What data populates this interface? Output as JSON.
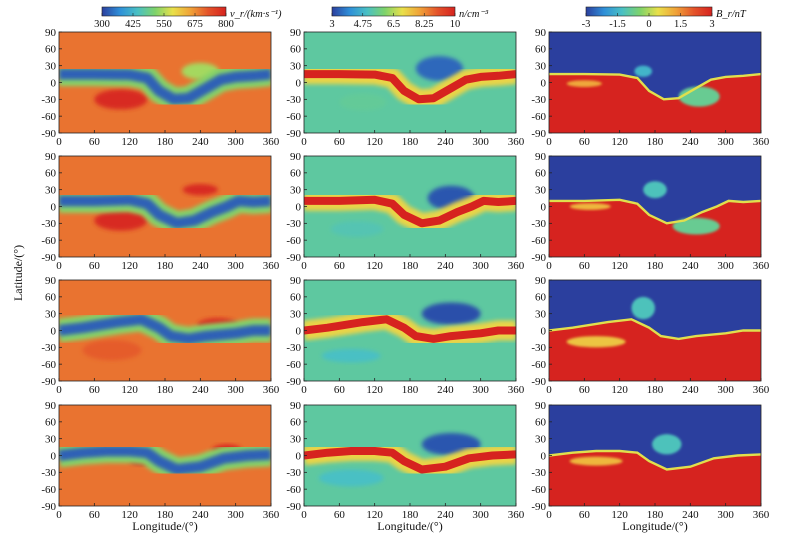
{
  "chart_data": {
    "type": "heatmap",
    "layout": "4 rows x 3 columns of synoptic maps",
    "xlabel": "Longitude/(°)",
    "ylabel": "Latitude/(°)",
    "xlim": [
      0,
      360
    ],
    "ylim": [
      -90,
      90
    ],
    "xticks": [
      0,
      60,
      120,
      180,
      240,
      300,
      360
    ],
    "yticks": [
      90,
      60,
      30,
      0,
      -30,
      -60,
      -90
    ],
    "columns": [
      {
        "quantity": "radial velocity",
        "colorbar_label": "v_r/(km·s⁻¹)",
        "colorbar_ticks": [
          300,
          425,
          550,
          675,
          800
        ],
        "colorbar_range": [
          300,
          800
        ],
        "colors": [
          "#2b3f9e",
          "#2f8fd8",
          "#49c0c4",
          "#7ed36b",
          "#e9e04a",
          "#f0a238",
          "#e4532a",
          "#d6231f"
        ]
      },
      {
        "quantity": "number density",
        "colorbar_label": "n/cm⁻³",
        "colorbar_ticks": [
          3,
          4.75,
          6.5,
          8.25,
          10
        ],
        "colorbar_range": [
          3,
          10
        ],
        "colors": [
          "#2b3f9e",
          "#2f8fd8",
          "#49c0c4",
          "#7ed36b",
          "#e9e04a",
          "#f0a238",
          "#e4532a",
          "#d6231f"
        ]
      },
      {
        "quantity": "radial magnetic field",
        "colorbar_label": "B_r/nT",
        "colorbar_ticks": [
          -3,
          -1.5,
          0,
          1.5,
          3
        ],
        "colorbar_range": [
          -3,
          3
        ],
        "colors": [
          "#2b3f9e",
          "#2f8fd8",
          "#49c0c4",
          "#7ed36b",
          "#e9e04a",
          "#f0a238",
          "#e4532a",
          "#d6231f"
        ]
      }
    ],
    "rows": [
      {
        "neutral_line": [
          [
            0,
            15
          ],
          [
            60,
            15
          ],
          [
            120,
            14
          ],
          [
            150,
            8
          ],
          [
            170,
            -15
          ],
          [
            195,
            -30
          ],
          [
            220,
            -28
          ],
          [
            250,
            -10
          ],
          [
            275,
            5
          ],
          [
            300,
            10
          ],
          [
            330,
            12
          ],
          [
            360,
            15
          ]
        ],
        "vr_blobs": [
          {
            "lon": 105,
            "lat": -30,
            "rx": 45,
            "ry": 18,
            "value": 790
          },
          {
            "lon": 240,
            "lat": 20,
            "rx": 32,
            "ry": 15,
            "value": 540
          }
        ],
        "n_blobs": [
          {
            "lon": 230,
            "lat": 25,
            "rx": 40,
            "ry": 22,
            "value": 3.5
          },
          {
            "lon": 100,
            "lat": -35,
            "rx": 40,
            "ry": 15,
            "value": 5.5
          }
        ],
        "br_blobs": [
          {
            "lon": 255,
            "lat": -25,
            "rx": 35,
            "ry": 18,
            "value": -0.8
          },
          {
            "lon": 60,
            "lat": -2,
            "rx": 30,
            "ry": 6,
            "value": 1.2
          },
          {
            "lon": 160,
            "lat": 20,
            "rx": 15,
            "ry": 10,
            "value": -1.5
          }
        ]
      },
      {
        "neutral_line": [
          [
            0,
            10
          ],
          [
            60,
            10
          ],
          [
            120,
            12
          ],
          [
            150,
            5
          ],
          [
            170,
            -15
          ],
          [
            200,
            -30
          ],
          [
            230,
            -25
          ],
          [
            260,
            -10
          ],
          [
            285,
            0
          ],
          [
            305,
            10
          ],
          [
            330,
            8
          ],
          [
            360,
            10
          ]
        ],
        "vr_blobs": [
          {
            "lon": 105,
            "lat": -25,
            "rx": 45,
            "ry": 18,
            "value": 790
          },
          {
            "lon": 240,
            "lat": 30,
            "rx": 30,
            "ry": 10,
            "value": 790
          }
        ],
        "n_blobs": [
          {
            "lon": 250,
            "lat": 15,
            "rx": 40,
            "ry": 22,
            "value": 3.3
          },
          {
            "lon": 90,
            "lat": -40,
            "rx": 45,
            "ry": 14,
            "value": 5.2
          }
        ],
        "br_blobs": [
          {
            "lon": 250,
            "lat": -35,
            "rx": 40,
            "ry": 15,
            "value": -0.8
          },
          {
            "lon": 70,
            "lat": 0,
            "rx": 35,
            "ry": 6,
            "value": 1.0
          },
          {
            "lon": 180,
            "lat": 30,
            "rx": 20,
            "ry": 15,
            "value": -1.2
          }
        ]
      },
      {
        "neutral_line": [
          [
            0,
            0
          ],
          [
            40,
            5
          ],
          [
            100,
            15
          ],
          [
            140,
            20
          ],
          [
            170,
            5
          ],
          [
            190,
            -10
          ],
          [
            220,
            -15
          ],
          [
            250,
            -10
          ],
          [
            300,
            -5
          ],
          [
            330,
            0
          ],
          [
            360,
            0
          ]
        ],
        "vr_blobs": [
          {
            "lon": 270,
            "lat": 10,
            "rx": 35,
            "ry": 12,
            "value": 790
          },
          {
            "lon": 90,
            "lat": -35,
            "rx": 50,
            "ry": 18,
            "value": 720
          }
        ],
        "n_blobs": [
          {
            "lon": 250,
            "lat": 30,
            "rx": 50,
            "ry": 20,
            "value": 3.2
          },
          {
            "lon": 80,
            "lat": -45,
            "rx": 50,
            "ry": 12,
            "value": 5.0
          }
        ],
        "br_blobs": [
          {
            "lon": 80,
            "lat": -20,
            "rx": 50,
            "ry": 10,
            "value": 0.8
          },
          {
            "lon": 160,
            "lat": 40,
            "rx": 20,
            "ry": 20,
            "value": -1.2
          }
        ]
      },
      {
        "neutral_line": [
          [
            0,
            0
          ],
          [
            40,
            5
          ],
          [
            80,
            8
          ],
          [
            120,
            8
          ],
          [
            150,
            5
          ],
          [
            170,
            -10
          ],
          [
            200,
            -25
          ],
          [
            240,
            -20
          ],
          [
            280,
            -5
          ],
          [
            320,
            0
          ],
          [
            360,
            2
          ]
        ],
        "vr_blobs": [
          {
            "lon": 285,
            "lat": 10,
            "rx": 25,
            "ry": 10,
            "value": 790
          },
          {
            "lon": 140,
            "lat": -10,
            "rx": 20,
            "ry": 8,
            "value": 790
          }
        ],
        "n_blobs": [
          {
            "lon": 250,
            "lat": 20,
            "rx": 50,
            "ry": 20,
            "value": 3.3
          },
          {
            "lon": 80,
            "lat": -40,
            "rx": 55,
            "ry": 15,
            "value": 5.0
          }
        ],
        "br_blobs": [
          {
            "lon": 200,
            "lat": 20,
            "rx": 25,
            "ry": 18,
            "value": -1.2
          },
          {
            "lon": 80,
            "lat": -10,
            "rx": 45,
            "ry": 8,
            "value": 1.0
          }
        ]
      }
    ]
  }
}
